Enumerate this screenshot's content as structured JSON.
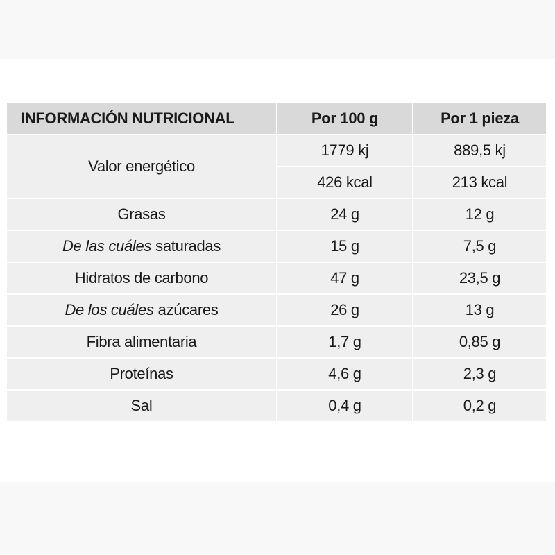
{
  "table": {
    "header": [
      "INFORMACIÓN NUTRICIONAL",
      "Por 100 g",
      "Por 1 pieza"
    ],
    "energy": {
      "label": "Valor energético",
      "per_100g": [
        "1779 kj",
        "426 kcal"
      ],
      "per_piece": [
        "889,5 kj",
        "213 kcal"
      ]
    },
    "rows": [
      {
        "label": "Grasas",
        "per_100g": "24 g",
        "per_piece": "12 g"
      },
      {
        "label_italic": "De las cuáles",
        "label": "saturadas",
        "per_100g": "15 g",
        "per_piece": "7,5 g"
      },
      {
        "label": "Hidratos de carbono",
        "per_100g": "47 g",
        "per_piece": "23,5 g"
      },
      {
        "label_italic": "De los cuáles",
        "label": "azúcares",
        "per_100g": "26 g",
        "per_piece": "13 g"
      },
      {
        "label": "Fibra alimentaria",
        "per_100g": "1,7 g",
        "per_piece": "0,85 g"
      },
      {
        "label": "Proteínas",
        "per_100g": "4,6 g",
        "per_piece": "2,3 g"
      },
      {
        "label": "Sal",
        "per_100g": "0,4 g",
        "per_piece": "0,2 g"
      }
    ]
  }
}
